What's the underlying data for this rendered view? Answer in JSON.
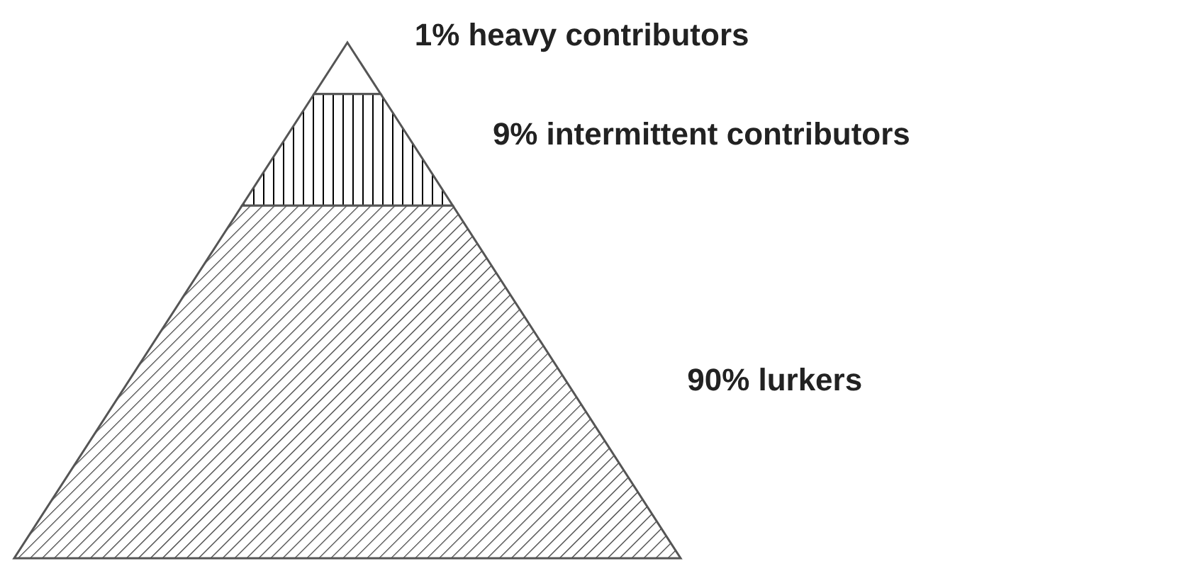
{
  "chart_data": {
    "type": "other",
    "categories": [
      "heavy contributors",
      "intermittent contributors",
      "lurkers"
    ],
    "values": [
      1,
      9,
      90
    ],
    "value_labels": [
      "1%",
      "9%",
      "90%"
    ]
  }
}
